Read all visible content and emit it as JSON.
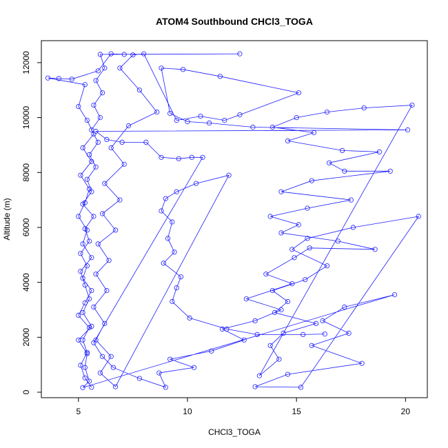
{
  "chart_data": {
    "type": "line",
    "title": "ATOM4 Southbound CHCl3_TOGA",
    "xlabel": "CHCl3_TOGA",
    "ylabel": "Altitude (m)",
    "xlim": [
      3.3,
      21.0
    ],
    "ylim": [
      -200,
      12800
    ],
    "xticks": [
      5,
      10,
      15,
      20
    ],
    "yticks": [
      0,
      2000,
      4000,
      6000,
      8000,
      10000,
      12000
    ],
    "markers": "open-circle",
    "color": "#1a1aff",
    "series": [
      {
        "values": [
          [
            5.6,
            180
          ],
          [
            5.3,
            520
          ],
          [
            5.1,
            980
          ],
          [
            5.4,
            1450
          ],
          [
            5.2,
            1900
          ],
          [
            5.5,
            2350
          ],
          [
            5.0,
            2800
          ],
          [
            5.3,
            3250
          ],
          [
            5.6,
            3700
          ],
          [
            5.2,
            4150
          ],
          [
            5.4,
            4600
          ],
          [
            5.1,
            5050
          ],
          [
            5.5,
            5500
          ],
          [
            5.3,
            5950
          ],
          [
            5.7,
            6400
          ],
          [
            5.2,
            6850
          ],
          [
            5.6,
            7300
          ],
          [
            5.4,
            7750
          ],
          [
            5.8,
            8200
          ],
          [
            5.5,
            8650
          ],
          [
            5.9,
            9100
          ],
          [
            5.6,
            9550
          ],
          [
            6.0,
            10000
          ],
          [
            5.7,
            10450
          ],
          [
            6.1,
            10900
          ],
          [
            5.8,
            11350
          ],
          [
            6.2,
            11800
          ],
          [
            6.0,
            12300
          ],
          [
            12.4,
            12320
          ],
          [
            7.1,
            12300
          ],
          [
            6.5,
            12320
          ],
          [
            5.9,
            11700
          ],
          [
            4.7,
            11400
          ],
          [
            4.1,
            11420
          ],
          [
            3.6,
            11440
          ],
          [
            5.3,
            11200
          ],
          [
            5.0,
            10400
          ],
          [
            5.4,
            9900
          ],
          [
            5.7,
            9400
          ],
          [
            5.2,
            8900
          ],
          [
            5.6,
            8400
          ],
          [
            5.1,
            7900
          ],
          [
            5.5,
            7400
          ],
          [
            5.3,
            6900
          ],
          [
            5.0,
            6400
          ],
          [
            5.4,
            5900
          ],
          [
            5.2,
            5400
          ],
          [
            5.6,
            4900
          ],
          [
            5.1,
            4400
          ],
          [
            5.3,
            3900
          ],
          [
            5.5,
            3400
          ],
          [
            5.2,
            2900
          ],
          [
            5.6,
            2400
          ],
          [
            5.0,
            1900
          ],
          [
            5.4,
            1400
          ],
          [
            5.3,
            900
          ],
          [
            5.5,
            400
          ],
          [
            5.2,
            170
          ],
          [
            19.5,
            3550
          ],
          [
            17.2,
            3100
          ],
          [
            16.2,
            2600
          ],
          [
            17.4,
            2150
          ],
          [
            15.7,
            1700
          ],
          [
            18.0,
            1050
          ],
          [
            14.6,
            650
          ],
          [
            13.1,
            200
          ],
          [
            15.2,
            180
          ],
          [
            20.6,
            6400
          ],
          [
            17.6,
            6000
          ],
          [
            15.5,
            5600
          ],
          [
            14.8,
            5200
          ],
          [
            16.4,
            4600
          ],
          [
            15.4,
            4100
          ],
          [
            13.9,
            3700
          ],
          [
            14.6,
            3300
          ],
          [
            14.0,
            2900
          ],
          [
            15.9,
            2500
          ],
          [
            14.4,
            2150
          ],
          [
            13.8,
            1700
          ],
          [
            14.2,
            1200
          ],
          [
            13.3,
            600
          ],
          [
            20.3,
            10450
          ],
          [
            18.1,
            10350
          ],
          [
            16.4,
            10200
          ],
          [
            15.0,
            10000
          ],
          [
            13.9,
            9650
          ],
          [
            15.8,
            9450
          ],
          [
            14.6,
            9150
          ],
          [
            17.1,
            8800
          ],
          [
            18.8,
            8750
          ],
          [
            16.5,
            8350
          ],
          [
            17.2,
            8050
          ],
          [
            19.3,
            8050
          ],
          [
            15.7,
            7700
          ],
          [
            14.3,
            7300
          ],
          [
            17.5,
            7000
          ],
          [
            15.5,
            6700
          ],
          [
            13.8,
            6400
          ],
          [
            15.1,
            6100
          ],
          [
            14.3,
            5800
          ],
          [
            16.9,
            5500
          ],
          [
            18.6,
            5200
          ],
          [
            15.6,
            5250
          ],
          [
            14.9,
            4900
          ],
          [
            13.6,
            4300
          ],
          [
            14.8,
            3950
          ],
          [
            12.7,
            3400
          ],
          [
            14.3,
            3000
          ],
          [
            13.1,
            2600
          ],
          [
            11.6,
            2300
          ],
          [
            12.6,
            1900
          ],
          [
            11.1,
            1500
          ],
          [
            9.2,
            1200
          ],
          [
            10.3,
            900
          ],
          [
            8.7,
            700
          ],
          [
            9.0,
            180
          ],
          [
            7.8,
            500
          ],
          [
            6.6,
            900
          ],
          [
            6.1,
            1300
          ],
          [
            5.7,
            1800
          ],
          [
            10.7,
            8550
          ],
          [
            10.2,
            8550
          ],
          [
            9.6,
            8500
          ],
          [
            8.8,
            8550
          ],
          [
            8.1,
            9100
          ],
          [
            7.0,
            9100
          ],
          [
            6.3,
            9200
          ],
          [
            5.8,
            9500
          ],
          [
            20.1,
            9550
          ],
          [
            13.0,
            9650
          ],
          [
            11.0,
            9800
          ],
          [
            10.0,
            9850
          ],
          [
            9.2,
            10150
          ],
          [
            8.8,
            11800
          ],
          [
            9.8,
            11750
          ],
          [
            11.5,
            11500
          ],
          [
            15.1,
            10900
          ],
          [
            12.4,
            10100
          ],
          [
            11.7,
            9900
          ],
          [
            10.6,
            10050
          ],
          [
            9.5,
            9900
          ],
          [
            8.0,
            12320
          ],
          [
            7.5,
            12280
          ],
          [
            6.9,
            11800
          ],
          [
            7.8,
            11000
          ],
          [
            8.6,
            10200
          ],
          [
            7.3,
            9700
          ],
          [
            6.5,
            8900
          ],
          [
            7.1,
            8300
          ],
          [
            6.2,
            7600
          ],
          [
            6.9,
            7000
          ],
          [
            6.1,
            6500
          ],
          [
            6.7,
            5900
          ],
          [
            5.9,
            5400
          ],
          [
            6.4,
            4800
          ],
          [
            5.8,
            4300
          ],
          [
            6.3,
            3700
          ],
          [
            5.7,
            3100
          ],
          [
            6.2,
            2500
          ],
          [
            5.8,
            1900
          ],
          [
            6.5,
            1300
          ],
          [
            6.0,
            700
          ],
          [
            6.7,
            200
          ],
          [
            11.9,
            7900
          ],
          [
            10.4,
            7600
          ],
          [
            9.5,
            7300
          ],
          [
            9.0,
            7050
          ],
          [
            8.8,
            6600
          ],
          [
            9.3,
            6200
          ],
          [
            9.1,
            5600
          ],
          [
            9.4,
            5100
          ],
          [
            8.9,
            4700
          ],
          [
            9.7,
            4200
          ],
          [
            9.5,
            3800
          ],
          [
            9.3,
            3300
          ],
          [
            10.1,
            2700
          ],
          [
            11.8,
            2300
          ],
          [
            13.2,
            2100
          ],
          [
            15.3,
            2100
          ],
          [
            16.3,
            2120
          ]
        ]
      }
    ]
  }
}
